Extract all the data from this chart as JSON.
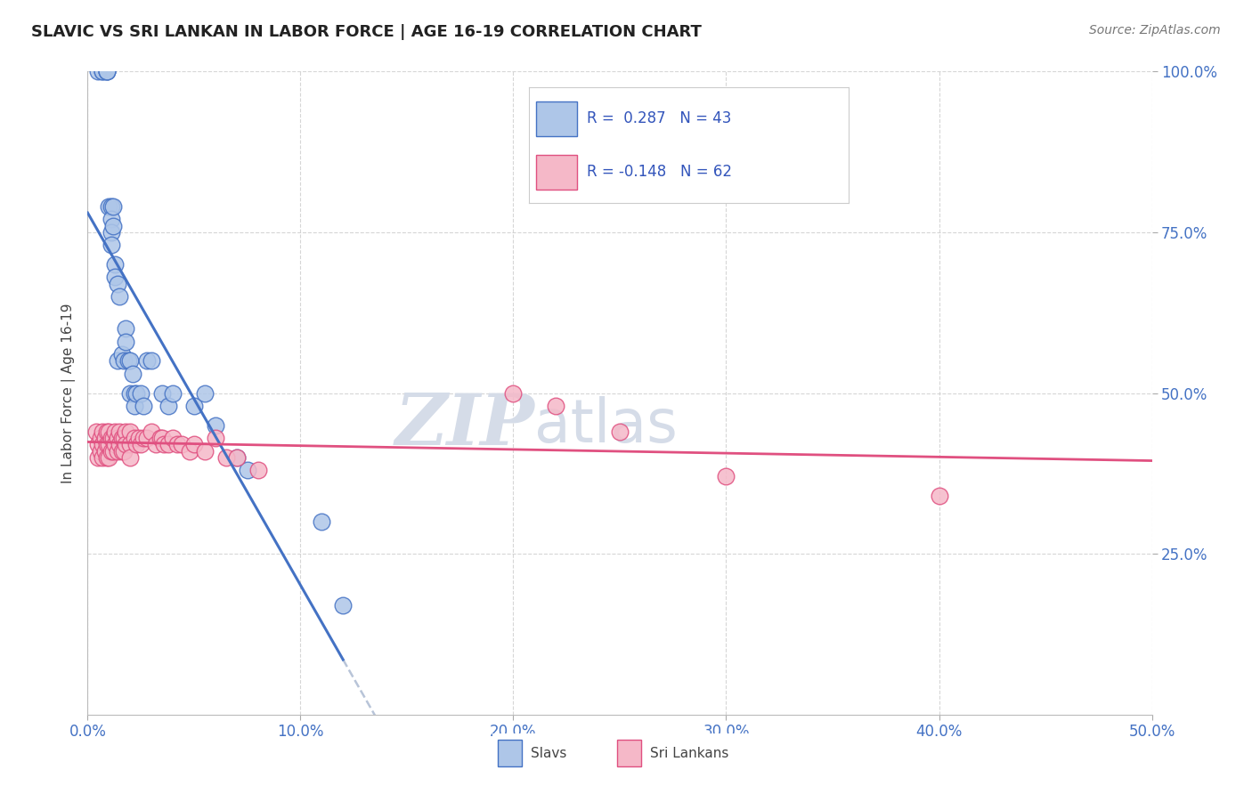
{
  "title": "SLAVIC VS SRI LANKAN IN LABOR FORCE | AGE 16-19 CORRELATION CHART",
  "source": "Source: ZipAtlas.com",
  "ylabel": "In Labor Force | Age 16-19",
  "xlim": [
    0.0,
    0.5
  ],
  "ylim": [
    0.0,
    1.0
  ],
  "xticks": [
    0.0,
    0.1,
    0.2,
    0.3,
    0.4,
    0.5
  ],
  "yticks": [
    0.25,
    0.5,
    0.75,
    1.0
  ],
  "xtick_labels": [
    "0.0%",
    "10.0%",
    "20.0%",
    "30.0%",
    "40.0%",
    "50.0%"
  ],
  "ytick_labels": [
    "25.0%",
    "50.0%",
    "75.0%",
    "100.0%"
  ],
  "slavs_R": 0.287,
  "slavs_N": 43,
  "srilankans_R": -0.148,
  "srilankans_N": 62,
  "slavs_color": "#aec6e8",
  "srilankans_color": "#f5b8c8",
  "slavs_line_color": "#4472c4",
  "srilankans_line_color": "#e05080",
  "dashed_line_color": "#b8c4d8",
  "slavs_x": [
    0.005,
    0.007,
    0.007,
    0.009,
    0.009,
    0.009,
    0.01,
    0.011,
    0.011,
    0.011,
    0.011,
    0.012,
    0.012,
    0.013,
    0.013,
    0.014,
    0.014,
    0.015,
    0.016,
    0.017,
    0.018,
    0.018,
    0.019,
    0.02,
    0.02,
    0.021,
    0.022,
    0.022,
    0.023,
    0.025,
    0.026,
    0.028,
    0.03,
    0.035,
    0.038,
    0.04,
    0.05,
    0.055,
    0.06,
    0.07,
    0.075,
    0.11,
    0.12
  ],
  "slavs_y": [
    1.0,
    1.0,
    1.0,
    1.0,
    1.0,
    1.0,
    0.79,
    0.79,
    0.77,
    0.75,
    0.73,
    0.79,
    0.76,
    0.7,
    0.68,
    0.67,
    0.55,
    0.65,
    0.56,
    0.55,
    0.6,
    0.58,
    0.55,
    0.55,
    0.5,
    0.53,
    0.5,
    0.48,
    0.5,
    0.5,
    0.48,
    0.55,
    0.55,
    0.5,
    0.48,
    0.5,
    0.48,
    0.5,
    0.45,
    0.4,
    0.38,
    0.3,
    0.17
  ],
  "srilankans_x": [
    0.004,
    0.005,
    0.005,
    0.006,
    0.006,
    0.007,
    0.007,
    0.007,
    0.008,
    0.008,
    0.009,
    0.009,
    0.009,
    0.01,
    0.01,
    0.01,
    0.011,
    0.011,
    0.012,
    0.012,
    0.013,
    0.013,
    0.014,
    0.014,
    0.015,
    0.015,
    0.016,
    0.016,
    0.017,
    0.017,
    0.018,
    0.018,
    0.02,
    0.02,
    0.02,
    0.022,
    0.023,
    0.024,
    0.025,
    0.026,
    0.028,
    0.03,
    0.032,
    0.034,
    0.035,
    0.036,
    0.038,
    0.04,
    0.042,
    0.044,
    0.048,
    0.05,
    0.055,
    0.06,
    0.065,
    0.07,
    0.08,
    0.2,
    0.22,
    0.25,
    0.3,
    0.4
  ],
  "srilankans_y": [
    0.44,
    0.42,
    0.4,
    0.43,
    0.41,
    0.44,
    0.42,
    0.4,
    0.43,
    0.41,
    0.44,
    0.42,
    0.4,
    0.44,
    0.42,
    0.4,
    0.43,
    0.41,
    0.43,
    0.41,
    0.44,
    0.42,
    0.43,
    0.41,
    0.44,
    0.42,
    0.43,
    0.41,
    0.43,
    0.41,
    0.44,
    0.42,
    0.44,
    0.42,
    0.4,
    0.43,
    0.42,
    0.43,
    0.42,
    0.43,
    0.43,
    0.44,
    0.42,
    0.43,
    0.43,
    0.42,
    0.42,
    0.43,
    0.42,
    0.42,
    0.41,
    0.42,
    0.41,
    0.43,
    0.4,
    0.4,
    0.38,
    0.5,
    0.48,
    0.44,
    0.37,
    0.34
  ],
  "watermark_zip": "ZIP",
  "watermark_atlas": "atlas",
  "watermark_color": "#d5dce8",
  "background_color": "#ffffff",
  "grid_color": "#cccccc"
}
